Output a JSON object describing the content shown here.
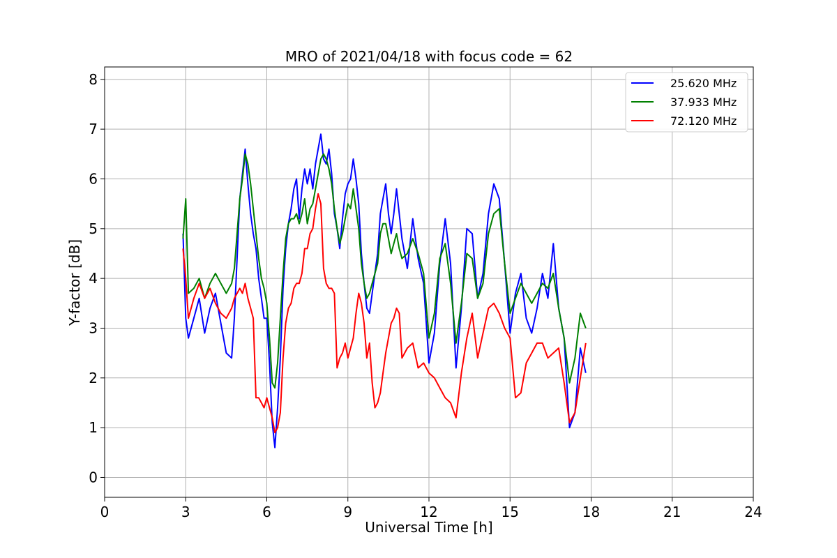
{
  "chart_data": {
    "type": "line",
    "title": "MRO of 2021/04/18 with focus code = 62",
    "xlabel": "Universal Time [h]",
    "ylabel": "Y-factor [dB]",
    "xlim": [
      0,
      24
    ],
    "ylim": [
      -0.4,
      8.25
    ],
    "xticks": [
      0,
      3,
      6,
      9,
      12,
      15,
      18,
      21,
      24
    ],
    "yticks": [
      0,
      1,
      2,
      3,
      4,
      5,
      6,
      7,
      8
    ],
    "grid": true,
    "legend_position": "top-right",
    "series": [
      {
        "name": "25.620 MHz",
        "color": "#0000ff",
        "x": [
          2.9,
          3.0,
          3.1,
          3.3,
          3.5,
          3.7,
          3.9,
          4.1,
          4.3,
          4.5,
          4.7,
          4.8,
          4.9,
          5.0,
          5.1,
          5.2,
          5.3,
          5.4,
          5.5,
          5.6,
          5.7,
          5.8,
          5.9,
          6.0,
          6.1,
          6.2,
          6.3,
          6.4,
          6.5,
          6.6,
          6.7,
          6.8,
          6.9,
          7.0,
          7.1,
          7.2,
          7.3,
          7.4,
          7.5,
          7.6,
          7.7,
          7.8,
          7.9,
          8.0,
          8.1,
          8.2,
          8.3,
          8.4,
          8.5,
          8.6,
          8.7,
          8.8,
          8.9,
          9.0,
          9.1,
          9.2,
          9.3,
          9.4,
          9.5,
          9.6,
          9.7,
          9.8,
          9.9,
          10.0,
          10.1,
          10.2,
          10.3,
          10.4,
          10.5,
          10.6,
          10.7,
          10.8,
          10.9,
          11.0,
          11.2,
          11.4,
          11.6,
          11.8,
          12.0,
          12.2,
          12.4,
          12.6,
          12.8,
          13.0,
          13.2,
          13.4,
          13.6,
          13.8,
          14.0,
          14.2,
          14.4,
          14.6,
          14.8,
          15.0,
          15.2,
          15.4,
          15.6,
          15.8,
          16.0,
          16.2,
          16.4,
          16.6,
          16.8,
          17.0,
          17.2,
          17.4,
          17.6,
          17.8
        ],
        "y": [
          4.9,
          3.2,
          2.8,
          3.2,
          3.6,
          2.9,
          3.4,
          3.7,
          3.1,
          2.5,
          2.4,
          3.2,
          4.4,
          5.6,
          6.1,
          6.6,
          5.9,
          5.3,
          4.9,
          4.6,
          4.0,
          3.6,
          3.2,
          3.2,
          2.3,
          1.1,
          0.6,
          1.4,
          2.4,
          3.8,
          4.6,
          5.1,
          5.4,
          5.8,
          6.0,
          5.2,
          5.8,
          6.2,
          5.9,
          6.2,
          5.8,
          6.3,
          6.6,
          6.9,
          6.4,
          6.3,
          6.6,
          6.1,
          5.3,
          5.0,
          4.6,
          5.2,
          5.7,
          5.9,
          6.0,
          6.4,
          6.0,
          5.5,
          4.5,
          3.9,
          3.4,
          3.3,
          3.7,
          4.1,
          4.5,
          5.3,
          5.6,
          5.9,
          5.3,
          4.9,
          5.3,
          5.8,
          5.3,
          4.8,
          4.2,
          5.2,
          4.4,
          3.9,
          2.3,
          2.9,
          4.3,
          5.2,
          4.3,
          2.2,
          3.4,
          5.0,
          4.9,
          3.6,
          4.1,
          5.3,
          5.9,
          5.6,
          4.3,
          2.9,
          3.7,
          4.1,
          3.2,
          2.9,
          3.4,
          4.1,
          3.6,
          4.7,
          3.4,
          2.8,
          1.0,
          1.3,
          2.6,
          2.1
        ]
      },
      {
        "name": "37.933 MHz",
        "color": "#008000",
        "x": [
          2.9,
          3.0,
          3.1,
          3.3,
          3.5,
          3.7,
          3.9,
          4.1,
          4.3,
          4.5,
          4.7,
          4.8,
          4.9,
          5.0,
          5.1,
          5.2,
          5.3,
          5.4,
          5.5,
          5.6,
          5.7,
          5.8,
          5.9,
          6.0,
          6.1,
          6.2,
          6.3,
          6.4,
          6.5,
          6.6,
          6.7,
          6.8,
          6.9,
          7.0,
          7.1,
          7.2,
          7.3,
          7.4,
          7.5,
          7.6,
          7.7,
          7.8,
          7.9,
          8.0,
          8.1,
          8.2,
          8.3,
          8.4,
          8.5,
          8.6,
          8.7,
          8.8,
          8.9,
          9.0,
          9.1,
          9.2,
          9.3,
          9.4,
          9.5,
          9.6,
          9.7,
          9.8,
          9.9,
          10.0,
          10.1,
          10.2,
          10.3,
          10.4,
          10.5,
          10.6,
          10.7,
          10.8,
          10.9,
          11.0,
          11.2,
          11.4,
          11.6,
          11.8,
          12.0,
          12.2,
          12.4,
          12.6,
          12.8,
          13.0,
          13.2,
          13.4,
          13.6,
          13.8,
          14.0,
          14.2,
          14.4,
          14.6,
          14.8,
          15.0,
          15.2,
          15.4,
          15.6,
          15.8,
          16.0,
          16.2,
          16.4,
          16.6,
          16.8,
          17.0,
          17.2,
          17.4,
          17.6,
          17.8
        ],
        "y": [
          4.8,
          5.6,
          3.7,
          3.8,
          4.0,
          3.6,
          3.9,
          4.1,
          3.9,
          3.7,
          3.9,
          4.2,
          4.9,
          5.6,
          6.0,
          6.5,
          6.3,
          5.9,
          5.4,
          4.9,
          4.4,
          4.0,
          3.8,
          3.5,
          2.8,
          1.9,
          1.8,
          2.3,
          3.2,
          4.1,
          4.8,
          5.1,
          5.2,
          5.2,
          5.3,
          5.1,
          5.3,
          5.6,
          5.1,
          5.4,
          5.5,
          5.8,
          6.1,
          6.4,
          6.5,
          6.4,
          6.2,
          5.9,
          5.4,
          5.0,
          4.7,
          4.9,
          5.2,
          5.5,
          5.4,
          5.8,
          5.4,
          5.0,
          4.3,
          3.9,
          3.6,
          3.7,
          3.9,
          4.1,
          4.3,
          4.9,
          5.1,
          5.1,
          4.8,
          4.5,
          4.7,
          4.9,
          4.6,
          4.4,
          4.5,
          4.8,
          4.5,
          4.1,
          2.8,
          3.3,
          4.4,
          4.7,
          3.9,
          2.7,
          3.5,
          4.5,
          4.4,
          3.6,
          3.9,
          4.9,
          5.3,
          5.4,
          4.3,
          3.3,
          3.6,
          3.9,
          3.7,
          3.5,
          3.7,
          3.9,
          3.8,
          4.1,
          3.4,
          2.8,
          1.9,
          2.4,
          3.3,
          3.0
        ]
      },
      {
        "name": "72.120 MHz",
        "color": "#ff0000",
        "x": [
          2.9,
          3.0,
          3.1,
          3.3,
          3.5,
          3.7,
          3.9,
          4.1,
          4.3,
          4.5,
          4.7,
          4.8,
          4.9,
          5.0,
          5.1,
          5.2,
          5.3,
          5.4,
          5.5,
          5.6,
          5.7,
          5.8,
          5.9,
          6.0,
          6.1,
          6.2,
          6.3,
          6.4,
          6.5,
          6.6,
          6.7,
          6.8,
          6.9,
          7.0,
          7.1,
          7.2,
          7.3,
          7.4,
          7.5,
          7.6,
          7.7,
          7.8,
          7.9,
          8.0,
          8.1,
          8.2,
          8.3,
          8.4,
          8.5,
          8.6,
          8.7,
          8.8,
          8.9,
          9.0,
          9.1,
          9.2,
          9.3,
          9.4,
          9.5,
          9.6,
          9.7,
          9.8,
          9.9,
          10.0,
          10.1,
          10.2,
          10.3,
          10.4,
          10.5,
          10.6,
          10.7,
          10.8,
          10.9,
          11.0,
          11.2,
          11.4,
          11.6,
          11.8,
          12.0,
          12.2,
          12.4,
          12.6,
          12.8,
          13.0,
          13.2,
          13.4,
          13.6,
          13.8,
          14.0,
          14.2,
          14.4,
          14.6,
          14.8,
          15.0,
          15.2,
          15.4,
          15.6,
          15.8,
          16.0,
          16.2,
          16.4,
          16.6,
          16.8,
          17.0,
          17.2,
          17.4,
          17.6,
          17.8
        ],
        "y": [
          4.6,
          4.0,
          3.2,
          3.6,
          3.9,
          3.6,
          3.8,
          3.5,
          3.3,
          3.2,
          3.4,
          3.6,
          3.7,
          3.8,
          3.7,
          3.9,
          3.6,
          3.4,
          3.2,
          1.6,
          1.6,
          1.5,
          1.4,
          1.6,
          1.4,
          1.2,
          0.9,
          1.0,
          1.3,
          2.4,
          3.1,
          3.4,
          3.5,
          3.8,
          3.9,
          3.9,
          4.1,
          4.6,
          4.6,
          4.9,
          5.0,
          5.4,
          5.7,
          5.5,
          4.2,
          3.9,
          3.8,
          3.8,
          3.7,
          2.2,
          2.4,
          2.5,
          2.7,
          2.4,
          2.6,
          2.8,
          3.3,
          3.7,
          3.5,
          3.1,
          2.4,
          2.7,
          1.9,
          1.4,
          1.5,
          1.7,
          2.1,
          2.5,
          2.8,
          3.1,
          3.2,
          3.4,
          3.3,
          2.4,
          2.6,
          2.7,
          2.2,
          2.3,
          2.1,
          2.0,
          1.8,
          1.6,
          1.5,
          1.2,
          2.1,
          2.8,
          3.3,
          2.4,
          2.9,
          3.4,
          3.5,
          3.3,
          3.0,
          2.8,
          1.6,
          1.7,
          2.3,
          2.5,
          2.7,
          2.7,
          2.4,
          2.5,
          2.6,
          1.9,
          1.1,
          1.3,
          2.0,
          2.7
        ]
      }
    ]
  }
}
